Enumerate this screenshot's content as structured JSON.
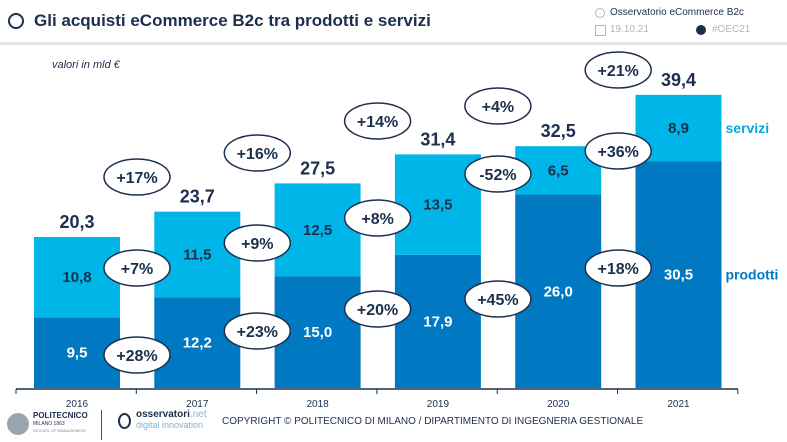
{
  "header": {
    "title": "Gli acquisti eCommerce B2c tra prodotti e servizi",
    "source": "Osservatorio eCommerce B2c",
    "date": "19.10.21",
    "hashtag": "#OEC21"
  },
  "footer": {
    "logo1": "POLITECNICO",
    "logo1_sub": "MILANO 1863",
    "logo1_sub2": "SCHOOL OF MANAGEMENT",
    "logo2a": "osservatori",
    "logo2b": ".net",
    "logo2c": "digital innovation",
    "copyright": "COPYRIGHT © POLITECNICO DI MILANO / DIPARTIMENTO DI INGEGNERIA GESTIONALE"
  },
  "chart_data": {
    "type": "bar",
    "stacked": true,
    "unit_label": "valori in mld €",
    "categories": [
      "2016",
      "2017",
      "2018",
      "2019",
      "2020",
      "2021"
    ],
    "series": [
      {
        "name": "prodotti",
        "values": [
          9.5,
          12.2,
          15.0,
          17.9,
          26.0,
          30.5
        ],
        "labels": [
          "9,5",
          "12,2",
          "15,0",
          "17,9",
          "26,0",
          "30,5"
        ],
        "color": "#0079c2",
        "growth": [
          "+28%",
          "+23%",
          "+20%",
          "+45%",
          "+18%"
        ]
      },
      {
        "name": "servizi",
        "values": [
          10.8,
          11.5,
          12.5,
          13.5,
          6.5,
          8.9
        ],
        "labels": [
          "10,8",
          "11,5",
          "12,5",
          "13,5",
          "6,5",
          "8,9"
        ],
        "color": "#00b6e8",
        "growth": [
          "+7%",
          "+9%",
          "+8%",
          "-52%",
          "+36%"
        ]
      }
    ],
    "totals": [
      20.3,
      23.7,
      27.5,
      31.4,
      32.5,
      39.4
    ],
    "total_labels": [
      "20,3",
      "23,7",
      "27,5",
      "31,4",
      "32,5",
      "39,4"
    ],
    "total_growth": [
      "+17%",
      "+16%",
      "+14%",
      "+4%",
      "+21%"
    ],
    "ylim": [
      0,
      40
    ],
    "grid": false,
    "legend": "right-inline"
  }
}
